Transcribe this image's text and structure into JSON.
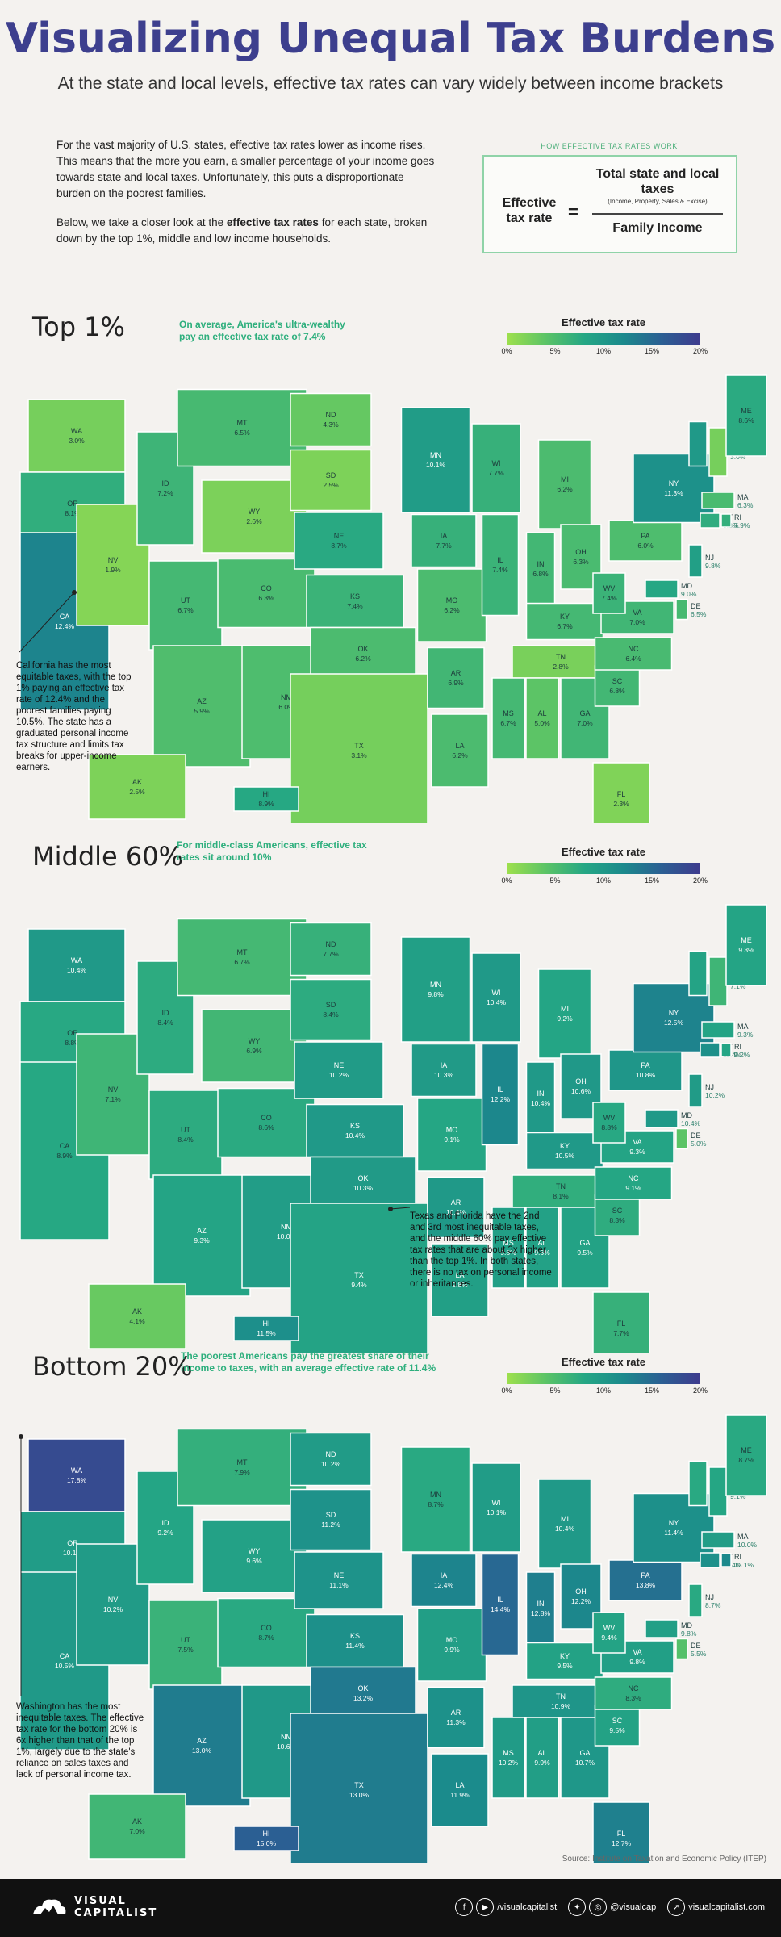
{
  "title": "Visualizing Unequal Tax Burdens",
  "subtitle": "At the state and local levels, effective tax rates can vary widely between income brackets",
  "intro": {
    "p1": "For the vast majority of U.S. states, effective tax rates lower as income rises. This means that the more you earn, a smaller percentage of your income goes towards state and local taxes. Unfortunately, this puts a disproportionate burden on the poorest families.",
    "p2_a": "Below, we take a closer look at the ",
    "p2_b": "effective tax rates",
    "p2_c": " for each state, broken down by the top 1%, middle and low income households."
  },
  "formula": {
    "label": "HOW EFFECTIVE TAX RATES WORK",
    "left": "Effective tax rate",
    "eq": "=",
    "numerator": "Total state and local taxes",
    "numerator_note": "(Income, Property, Sales & Excise)",
    "denominator": "Family Income"
  },
  "legend": {
    "title": "Effective tax rate",
    "ticks": [
      "0%",
      "5%",
      "10%",
      "15%",
      "20%"
    ]
  },
  "colors": {
    "title": "#3d3f8e",
    "accent": "#2eaf7d",
    "scale": [
      "#9ee04c",
      "#5cc466",
      "#25a784",
      "#1b8a8c",
      "#2b5f93",
      "#3e3b8e"
    ]
  },
  "sections": [
    {
      "title": "Top 1%",
      "note": "On average, America's ultra-wealthy pay an effective tax rate of 7.4%",
      "annotation": "California has the most equitable taxes, with the top 1% paying an effective tax rate of 12.4% and the poorest families paying 10.5%. The state has a graduated personal income tax structure and limits tax breaks for upper-income earners.",
      "rates": {
        "WA": "3.0%",
        "OR": "8.1%",
        "CA": "12.4%",
        "NV": "1.9%",
        "ID": "7.2%",
        "MT": "6.5%",
        "WY": "2.6%",
        "UT": "6.7%",
        "CO": "6.3%",
        "AZ": "5.9%",
        "NM": "6.0%",
        "ND": "4.3%",
        "SD": "2.5%",
        "NE": "8.7%",
        "KS": "7.4%",
        "OK": "6.2%",
        "TX": "3.1%",
        "MN": "10.1%",
        "IA": "7.7%",
        "MO": "6.2%",
        "AR": "6.9%",
        "LA": "6.2%",
        "WI": "7.7%",
        "IL": "7.4%",
        "MI": "6.2%",
        "IN": "6.8%",
        "OH": "6.3%",
        "KY": "6.7%",
        "TN": "2.8%",
        "MS": "6.7%",
        "AL": "5.0%",
        "GA": "7.0%",
        "FL": "2.3%",
        "SC": "6.8%",
        "NC": "6.4%",
        "VA": "7.0%",
        "WV": "7.4%",
        "MD": "9.0%",
        "DE": "6.5%",
        "PA": "6.0%",
        "NY": "11.3%",
        "NJ": "9.8%",
        "CT": "8.3%",
        "RI": "7.9%",
        "MA": "6.3%",
        "VT": "10.4%",
        "NH": "3.0%",
        "ME": "8.6%",
        "AK": "2.5%",
        "HI": "8.9%"
      }
    },
    {
      "title": "Middle 60%",
      "note": "For middle-class Americans, effective tax rates sit around 10%",
      "annotation": "Texas and Florida have the 2nd and 3rd most inequitable taxes, and the middle 60% pay effective tax rates that are about 3x higher than the top 1%. In both states, there is no tax on personal income or inheritances.",
      "rates": {
        "WA": "10.4%",
        "OR": "8.8%",
        "CA": "8.9%",
        "NV": "7.1%",
        "ID": "8.4%",
        "MT": "6.7%",
        "WY": "6.9%",
        "UT": "8.4%",
        "CO": "8.6%",
        "AZ": "9.3%",
        "NM": "10.0%",
        "ND": "7.7%",
        "SD": "8.4%",
        "NE": "10.2%",
        "KS": "10.4%",
        "OK": "10.3%",
        "TX": "9.4%",
        "MN": "9.8%",
        "IA": "10.3%",
        "MO": "9.1%",
        "AR": "10.4%",
        "LA": "9.8%",
        "WI": "10.4%",
        "IL": "12.2%",
        "MI": "9.2%",
        "IN": "10.4%",
        "OH": "10.6%",
        "KY": "10.5%",
        "TN": "8.1%",
        "MS": "9.8%",
        "AL": "9.6%",
        "GA": "9.5%",
        "FL": "7.7%",
        "SC": "8.3%",
        "NC": "9.1%",
        "VA": "9.3%",
        "WV": "8.8%",
        "MD": "10.4%",
        "DE": "5.0%",
        "PA": "10.8%",
        "NY": "12.5%",
        "NJ": "10.2%",
        "CT": "11.4%",
        "RI": "9.2%",
        "MA": "9.3%",
        "VT": "9.4%",
        "NH": "7.1%",
        "ME": "9.3%",
        "AK": "4.1%",
        "HI": "11.5%"
      }
    },
    {
      "title": "Bottom 20%",
      "note": "The poorest Americans pay the greatest share of their income to taxes, with an average effective rate of 11.4%",
      "annotation": "Washington has the most inequitable taxes. The effective tax rate for the bottom 20% is 6x higher than that of the top 1%, largely due to the state's reliance on sales taxes and lack of personal income tax.",
      "rates": {
        "WA": "17.8%",
        "OR": "10.1%",
        "CA": "10.5%",
        "NV": "10.2%",
        "ID": "9.2%",
        "MT": "7.9%",
        "WY": "9.6%",
        "UT": "7.5%",
        "CO": "8.7%",
        "AZ": "13.0%",
        "NM": "10.6%",
        "ND": "10.2%",
        "SD": "11.2%",
        "NE": "11.1%",
        "KS": "11.4%",
        "OK": "13.2%",
        "TX": "13.0%",
        "MN": "8.7%",
        "IA": "12.4%",
        "MO": "9.9%",
        "AR": "11.3%",
        "LA": "11.9%",
        "WI": "10.1%",
        "IL": "14.4%",
        "MI": "10.4%",
        "IN": "12.8%",
        "OH": "12.2%",
        "KY": "9.5%",
        "TN": "10.9%",
        "MS": "10.2%",
        "AL": "9.9%",
        "GA": "10.7%",
        "FL": "12.7%",
        "SC": "9.5%",
        "NC": "8.3%",
        "VA": "9.8%",
        "WV": "9.4%",
        "MD": "9.8%",
        "DE": "5.5%",
        "PA": "13.8%",
        "NY": "11.4%",
        "NJ": "8.7%",
        "CT": "11.4%",
        "RI": "12.1%",
        "MA": "10.0%",
        "VT": "8.7%",
        "NH": "9.1%",
        "ME": "8.7%",
        "AK": "7.0%",
        "HI": "15.0%"
      }
    }
  ],
  "source": "Source: Institute on Taxation and Economic Policy (ITEP)",
  "footer": {
    "brand_top": "VISUAL",
    "brand_bottom": "CAPITALIST",
    "handle1": "/visualcapitalist",
    "handle2": "@visualcap",
    "site": "visualcapitalist.com"
  }
}
